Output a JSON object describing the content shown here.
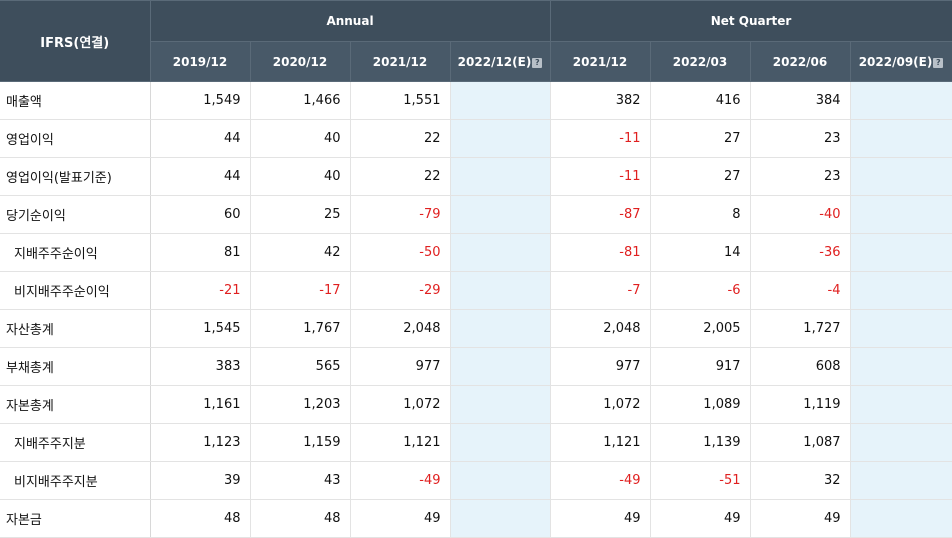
{
  "header": {
    "corner_label": "IFRS(연결)",
    "annual_label": "Annual",
    "quarter_label": "Net Quarter",
    "annual_periods": [
      "2019/12",
      "2020/12",
      "2021/12",
      "2022/12(E)"
    ],
    "quarter_periods": [
      "2021/12",
      "2022/03",
      "2022/06",
      "2022/09(E)"
    ],
    "estimate_icon": "question-icon"
  },
  "colors": {
    "header_bg": "#3e4e5c",
    "estimate_bg": "#e6f3fa",
    "negative": "#e02020"
  },
  "rows": [
    {
      "label": "매출액",
      "sub": false,
      "annual": [
        "1,549",
        "1,466",
        "1,551",
        ""
      ],
      "quarter": [
        "382",
        "416",
        "384",
        ""
      ]
    },
    {
      "label": "영업이익",
      "sub": false,
      "annual": [
        "44",
        "40",
        "22",
        ""
      ],
      "quarter": [
        "-11",
        "27",
        "23",
        ""
      ]
    },
    {
      "label": "영업이익(발표기준)",
      "sub": false,
      "annual": [
        "44",
        "40",
        "22",
        ""
      ],
      "quarter": [
        "-11",
        "27",
        "23",
        ""
      ]
    },
    {
      "label": "당기순이익",
      "sub": false,
      "annual": [
        "60",
        "25",
        "-79",
        ""
      ],
      "quarter": [
        "-87",
        "8",
        "-40",
        ""
      ]
    },
    {
      "label": "지배주주순이익",
      "sub": true,
      "annual": [
        "81",
        "42",
        "-50",
        ""
      ],
      "quarter": [
        "-81",
        "14",
        "-36",
        ""
      ]
    },
    {
      "label": "비지배주주순이익",
      "sub": true,
      "annual": [
        "-21",
        "-17",
        "-29",
        ""
      ],
      "quarter": [
        "-7",
        "-6",
        "-4",
        ""
      ]
    },
    {
      "label": "자산총계",
      "sub": false,
      "annual": [
        "1,545",
        "1,767",
        "2,048",
        ""
      ],
      "quarter": [
        "2,048",
        "2,005",
        "1,727",
        ""
      ]
    },
    {
      "label": "부채총계",
      "sub": false,
      "annual": [
        "383",
        "565",
        "977",
        ""
      ],
      "quarter": [
        "977",
        "917",
        "608",
        ""
      ]
    },
    {
      "label": "자본총계",
      "sub": false,
      "annual": [
        "1,161",
        "1,203",
        "1,072",
        ""
      ],
      "quarter": [
        "1,072",
        "1,089",
        "1,119",
        ""
      ]
    },
    {
      "label": "지배주주지분",
      "sub": true,
      "annual": [
        "1,123",
        "1,159",
        "1,121",
        ""
      ],
      "quarter": [
        "1,121",
        "1,139",
        "1,087",
        ""
      ]
    },
    {
      "label": "비지배주주지분",
      "sub": true,
      "annual": [
        "39",
        "43",
        "-49",
        ""
      ],
      "quarter": [
        "-49",
        "-51",
        "32",
        ""
      ]
    },
    {
      "label": "자본금",
      "sub": false,
      "annual": [
        "48",
        "48",
        "49",
        ""
      ],
      "quarter": [
        "49",
        "49",
        "49",
        ""
      ]
    }
  ]
}
